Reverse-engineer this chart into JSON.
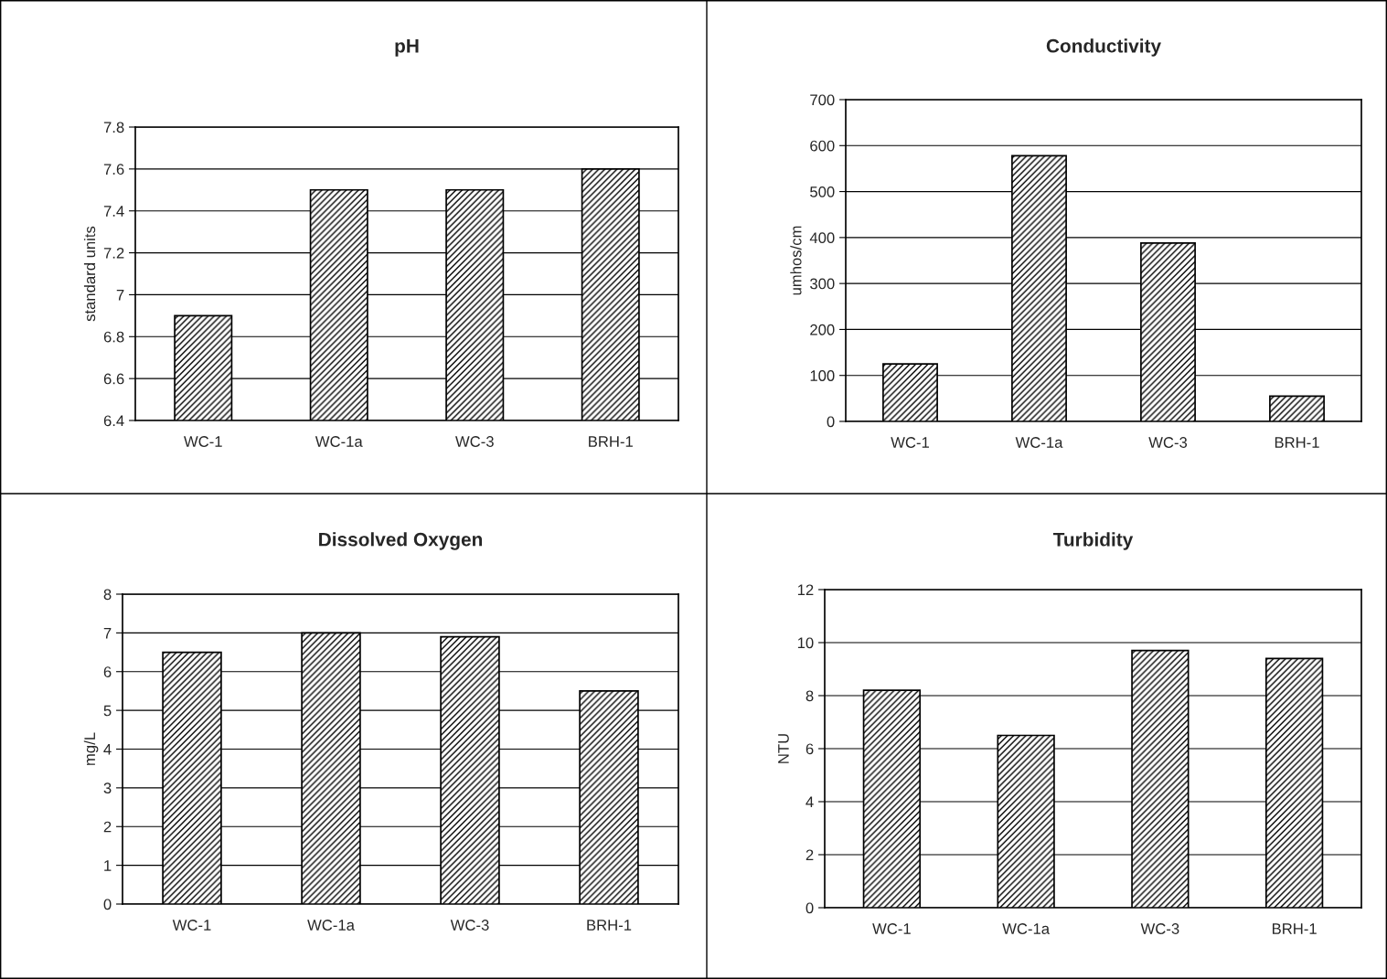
{
  "chart_data": [
    {
      "type": "bar",
      "title": "pH",
      "ylabel": "standard units",
      "categories": [
        "WC-1",
        "WC-1a",
        "WC-3",
        "BRH-1"
      ],
      "values": [
        6.9,
        7.5,
        7.5,
        7.6
      ],
      "color": "#000000",
      "ylim": [
        6.4,
        7.8
      ],
      "yticks": [
        6.4,
        6.6,
        6.8,
        7,
        7.2,
        7.4,
        7.6,
        7.8
      ],
      "grid": "y",
      "legend": false
    },
    {
      "type": "bar",
      "title": "Conductivity",
      "ylabel": "umhos/cm",
      "categories": [
        "WC-1",
        "WC-1a",
        "WC-3",
        "BRH-1"
      ],
      "values": [
        125,
        578,
        388,
        55
      ],
      "color": "#000000",
      "ylim": [
        0,
        700
      ],
      "yticks": [
        0,
        100,
        200,
        300,
        400,
        500,
        600,
        700
      ],
      "grid": "y",
      "legend": false
    },
    {
      "type": "bar",
      "title": "Dissolved Oxygen",
      "ylabel": "mg/L",
      "categories": [
        "WC-1",
        "WC-1a",
        "WC-3",
        "BRH-1"
      ],
      "values": [
        6.5,
        7.0,
        6.9,
        5.5
      ],
      "color": "#000000",
      "ylim": [
        0,
        8
      ],
      "yticks": [
        0,
        1,
        2,
        3,
        4,
        5,
        6,
        7,
        8
      ],
      "grid": "y",
      "legend": false
    },
    {
      "type": "bar",
      "title": "Turbidity",
      "ylabel": "NTU",
      "categories": [
        "WC-1",
        "WC-1a",
        "WC-3",
        "BRH-1"
      ],
      "values": [
        8.2,
        6.5,
        9.7,
        9.4
      ],
      "color": "#000000",
      "ylim": [
        0,
        12
      ],
      "yticks": [
        0,
        2,
        4,
        6,
        8,
        10,
        12
      ],
      "grid": "y",
      "legend": false
    }
  ]
}
